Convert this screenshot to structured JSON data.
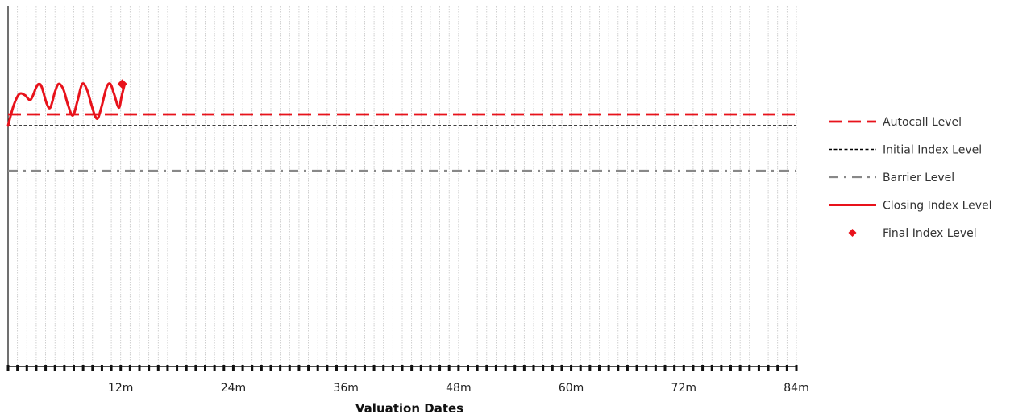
{
  "chart_data": {
    "type": "line",
    "title": "",
    "xlabel": "Valuation Dates",
    "ylabel": "",
    "x_unit": "months",
    "xlim": [
      0,
      84
    ],
    "ylim": [
      0,
      140
    ],
    "grid": {
      "vertical": true,
      "horizontal": false,
      "vertical_step_months": 1
    },
    "x_ticks": [
      {
        "value": 12,
        "label": "12m"
      },
      {
        "value": 24,
        "label": "24m"
      },
      {
        "value": 36,
        "label": "36m"
      },
      {
        "value": 48,
        "label": "48m"
      },
      {
        "value": 60,
        "label": "60m"
      },
      {
        "value": 72,
        "label": "72m"
      },
      {
        "value": 84,
        "label": "84m"
      }
    ],
    "levels": [
      {
        "name": "Autocall Level",
        "y": 105,
        "style": "dashed",
        "color": "#e8121b"
      },
      {
        "name": "Initial Index Level",
        "y": 100,
        "style": "dotted",
        "color": "#000000"
      },
      {
        "name": "Barrier Level",
        "y": 80,
        "style": "dash-dot",
        "color": "#888888"
      }
    ],
    "series": [
      {
        "name": "Closing Index Level",
        "color": "#e8121b",
        "points": [
          [
            0,
            100
          ],
          [
            0.6,
            109
          ],
          [
            1.2,
            114
          ],
          [
            1.8,
            113.5
          ],
          [
            2.4,
            111.5
          ],
          [
            3.0,
            117
          ],
          [
            3.3,
            118.5
          ],
          [
            3.6,
            117
          ],
          [
            4.1,
            110
          ],
          [
            4.5,
            108
          ],
          [
            5.0,
            115
          ],
          [
            5.4,
            118.5
          ],
          [
            5.9,
            116
          ],
          [
            6.4,
            109
          ],
          [
            6.9,
            104.5
          ],
          [
            7.4,
            111
          ],
          [
            7.9,
            118.5
          ],
          [
            8.4,
            116
          ],
          [
            8.9,
            109
          ],
          [
            9.3,
            104
          ],
          [
            9.6,
            103.5
          ],
          [
            10.0,
            109
          ],
          [
            10.5,
            117
          ],
          [
            10.9,
            118.5
          ],
          [
            11.3,
            114
          ],
          [
            11.8,
            108
          ],
          [
            12.1,
            113
          ],
          [
            12.4,
            118
          ]
        ]
      }
    ],
    "final_point": {
      "name": "Final Index Level",
      "x": 12,
      "y": 118.5,
      "color": "#e8121b",
      "marker": "diamond"
    },
    "legend": {
      "position": "right",
      "entries": [
        {
          "label": "Autocall Level",
          "style": "dashed",
          "color": "#e8121b"
        },
        {
          "label": "Initial Index Level",
          "style": "dotted",
          "color": "#000000"
        },
        {
          "label": "Barrier Level",
          "style": "dash-dot",
          "color": "#888888"
        },
        {
          "label": "Closing Index Level",
          "style": "solid",
          "color": "#e8121b"
        },
        {
          "label": "Final Index Level",
          "style": "diamond",
          "color": "#e8121b"
        }
      ]
    }
  }
}
